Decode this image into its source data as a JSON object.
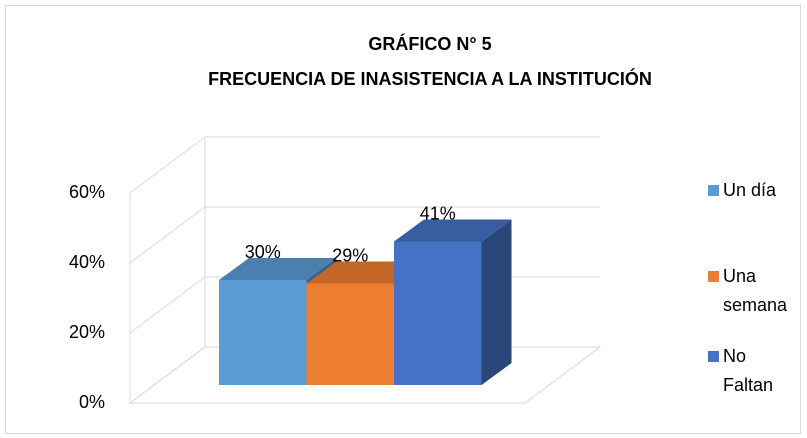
{
  "chart_data": {
    "type": "bar3d",
    "title": "GRÁFICO N° 5",
    "subtitle": "FRECUENCIA DE INASISTENCIA A LA INSTITUCIÓN",
    "series": [
      {
        "name": "Un día",
        "color": "#5b9bd5",
        "values": [
          30
        ],
        "value_labels": [
          "30%"
        ]
      },
      {
        "name": "Una semana",
        "color": "#ed7d31",
        "values": [
          29
        ],
        "value_labels": [
          "29%"
        ]
      },
      {
        "name": "No Faltan",
        "color": "#4472c4",
        "values": [
          41
        ],
        "value_labels": [
          "41%"
        ]
      }
    ],
    "ylim": [
      0,
      60
    ],
    "yticks": [
      {
        "value": 0,
        "label": "0%"
      },
      {
        "value": 20,
        "label": "20%"
      },
      {
        "value": 40,
        "label": "40%"
      },
      {
        "value": 60,
        "label": "60%"
      }
    ],
    "grid": true,
    "legend": "right"
  }
}
